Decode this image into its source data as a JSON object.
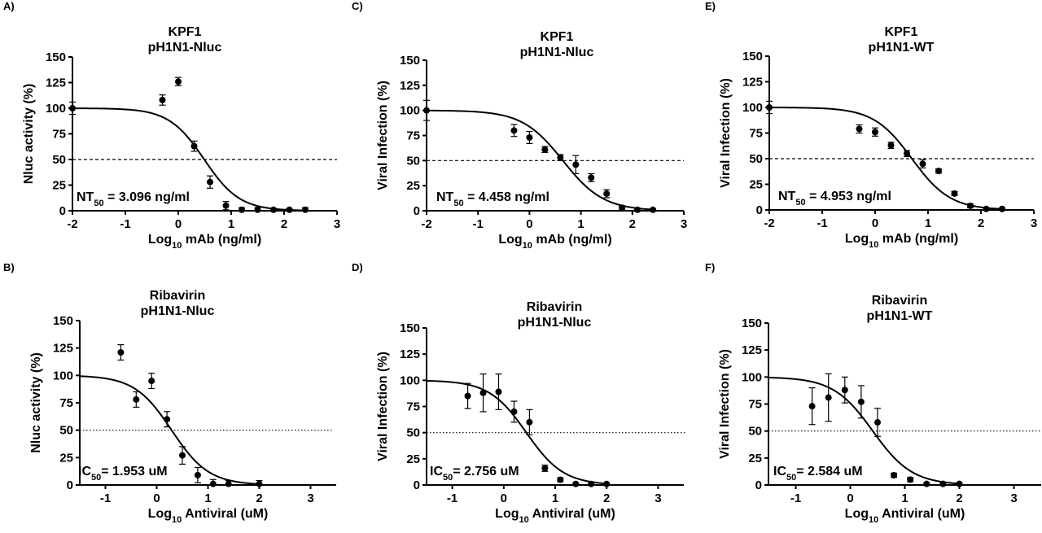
{
  "figure": {
    "background": "#ffffff",
    "ink": "#000000"
  },
  "chart_data": [
    {
      "panel_label": "A)",
      "type": "scatter",
      "title": "KPF1",
      "subtitle": "pH1N1-Nluc",
      "xlabel_prefix": "Log",
      "xlabel_sub": "10",
      "xlabel_suffix": " mAb (ng/ml)",
      "ylabel": "Nluc activity (%)",
      "xlim": [
        -2,
        3
      ],
      "ylim": [
        0,
        150
      ],
      "xticks": [
        -2,
        -1,
        0,
        1,
        2,
        3
      ],
      "yticks": [
        0,
        25,
        50,
        75,
        100,
        125,
        150
      ],
      "annotation_prefix": "NT",
      "annotation_sub": "50",
      "annotation_suffix": " = 3.096 ng/ml",
      "reference_line": {
        "y": 50,
        "style": "dashed"
      },
      "fit": {
        "top": 100,
        "bottom": 0,
        "logx50": 0.491,
        "hill": 1.3,
        "xrange": [
          -2,
          2.4
        ]
      },
      "points": [
        {
          "x": -2.0,
          "y": 100,
          "err": 6
        },
        {
          "x": -0.3,
          "y": 108,
          "err": 5
        },
        {
          "x": 0.0,
          "y": 126,
          "err": 4
        },
        {
          "x": 0.3,
          "y": 63,
          "err": 5
        },
        {
          "x": 0.6,
          "y": 28,
          "err": 6
        },
        {
          "x": 0.9,
          "y": 5,
          "err": 4
        },
        {
          "x": 1.2,
          "y": 1,
          "err": 2
        },
        {
          "x": 1.5,
          "y": 1,
          "err": 2
        },
        {
          "x": 1.8,
          "y": 1,
          "err": 1
        },
        {
          "x": 2.1,
          "y": 1,
          "err": 1
        },
        {
          "x": 2.4,
          "y": 1,
          "err": 2
        }
      ]
    },
    {
      "panel_label": "B)",
      "type": "scatter",
      "title": "Ribavirin",
      "subtitle": "pH1N1-Nluc",
      "xlabel_prefix": "Log",
      "xlabel_sub": "10",
      "xlabel_suffix": " Antiviral (uM)",
      "ylabel": "Nluc activity (%)",
      "xlim": [
        -1.5,
        3.5
      ],
      "ylim": [
        0,
        150
      ],
      "xticks": [
        -1,
        0,
        1,
        2,
        3
      ],
      "yticks": [
        0,
        25,
        50,
        75,
        100,
        125,
        150
      ],
      "annotation_prefix": "IC",
      "annotation_sub": "50",
      "annotation_suffix": "= 1.953 uM",
      "reference_line": {
        "y": 50,
        "style": "dotted"
      },
      "fit": {
        "top": 100,
        "bottom": 0,
        "logx50": 0.291,
        "hill": 1.2,
        "xrange": [
          -1.5,
          2.0
        ]
      },
      "points": [
        {
          "x": -0.7,
          "y": 121,
          "err": 7
        },
        {
          "x": -0.4,
          "y": 78,
          "err": 7
        },
        {
          "x": -0.1,
          "y": 95,
          "err": 7
        },
        {
          "x": 0.2,
          "y": 60,
          "err": 7
        },
        {
          "x": 0.5,
          "y": 27,
          "err": 8
        },
        {
          "x": 0.8,
          "y": 9,
          "err": 7
        },
        {
          "x": 1.1,
          "y": 1,
          "err": 4
        },
        {
          "x": 1.4,
          "y": 1,
          "err": 3
        },
        {
          "x": 2.0,
          "y": 1,
          "err": 3
        }
      ]
    },
    {
      "panel_label": "C)",
      "type": "scatter",
      "title": "KPF1",
      "subtitle": "pH1N1-Nluc",
      "xlabel_prefix": "Log",
      "xlabel_sub": "10",
      "xlabel_suffix": " mAb (ng/ml)",
      "ylabel": "Viral Infection (%)",
      "xlim": [
        -2,
        3
      ],
      "ylim": [
        0,
        150
      ],
      "xticks": [
        -2,
        -1,
        0,
        1,
        2,
        3
      ],
      "yticks": [
        0,
        25,
        50,
        75,
        100,
        125,
        150
      ],
      "annotation_prefix": "NT",
      "annotation_sub": "50",
      "annotation_suffix": " = 4.458 ng/ml",
      "reference_line": {
        "y": 50,
        "style": "dashed"
      },
      "fit": {
        "top": 100,
        "bottom": 0,
        "logx50": 0.649,
        "hill": 1.1,
        "xrange": [
          -2,
          2.4
        ]
      },
      "points": [
        {
          "x": -2.0,
          "y": 100,
          "err": 10
        },
        {
          "x": -0.3,
          "y": 80,
          "err": 6
        },
        {
          "x": 0.0,
          "y": 73,
          "err": 6
        },
        {
          "x": 0.3,
          "y": 61,
          "err": 3
        },
        {
          "x": 0.6,
          "y": 53,
          "err": 3
        },
        {
          "x": 0.9,
          "y": 46,
          "err": 9
        },
        {
          "x": 1.2,
          "y": 33,
          "err": 4
        },
        {
          "x": 1.5,
          "y": 17,
          "err": 4
        },
        {
          "x": 1.8,
          "y": 3,
          "err": 2
        },
        {
          "x": 2.1,
          "y": 1,
          "err": 1
        },
        {
          "x": 2.4,
          "y": 1,
          "err": 1
        }
      ]
    },
    {
      "panel_label": "D)",
      "type": "scatter",
      "title": "Ribavirin",
      "subtitle": "pH1N1-Nluc",
      "xlabel_prefix": "Log",
      "xlabel_sub": "10",
      "xlabel_suffix": " Antiviral (uM)",
      "ylabel": "Viral Infection (%)",
      "xlim": [
        -1.5,
        3.5
      ],
      "ylim": [
        0,
        150
      ],
      "xticks": [
        -1,
        0,
        1,
        2,
        3
      ],
      "yticks": [
        0,
        25,
        50,
        75,
        100,
        125,
        150
      ],
      "annotation_prefix": "IC",
      "annotation_sub": "50",
      "annotation_suffix": "= 2.756 uM",
      "reference_line": {
        "y": 50,
        "style": "dotted"
      },
      "fit": {
        "top": 100,
        "bottom": 0,
        "logx50": 0.44,
        "hill": 1.2,
        "xrange": [
          -1.5,
          2.0
        ]
      },
      "points": [
        {
          "x": -0.7,
          "y": 85,
          "err": 12
        },
        {
          "x": -0.4,
          "y": 88,
          "err": 18
        },
        {
          "x": -0.1,
          "y": 89,
          "err": 17
        },
        {
          "x": 0.2,
          "y": 70,
          "err": 10
        },
        {
          "x": 0.5,
          "y": 60,
          "err": 12
        },
        {
          "x": 0.8,
          "y": 16,
          "err": 3
        },
        {
          "x": 1.1,
          "y": 5,
          "err": 2
        },
        {
          "x": 1.4,
          "y": 1,
          "err": 1
        },
        {
          "x": 1.7,
          "y": 1,
          "err": 1
        },
        {
          "x": 2.0,
          "y": 1,
          "err": 1
        }
      ]
    },
    {
      "panel_label": "E)",
      "type": "scatter",
      "title": "KPF1",
      "subtitle": "pH1N1-WT",
      "xlabel_prefix": "Log",
      "xlabel_sub": "10",
      "xlabel_suffix": " mAb (ng/ml)",
      "ylabel": "Viral Infection (%)",
      "xlim": [
        -2,
        3
      ],
      "ylim": [
        0,
        150
      ],
      "xticks": [
        -2,
        -1,
        0,
        1,
        2,
        3
      ],
      "yticks": [
        0,
        25,
        50,
        75,
        100,
        125,
        150
      ],
      "annotation_prefix": "NT",
      "annotation_sub": "50",
      "annotation_suffix": " = 4.953 ng/ml",
      "reference_line": {
        "y": 50,
        "style": "dashed"
      },
      "fit": {
        "top": 100,
        "bottom": 0,
        "logx50": 0.695,
        "hill": 1.2,
        "xrange": [
          -2,
          2.4
        ]
      },
      "points": [
        {
          "x": -2.0,
          "y": 100,
          "err": 6
        },
        {
          "x": -0.3,
          "y": 79,
          "err": 4
        },
        {
          "x": 0.0,
          "y": 76,
          "err": 4
        },
        {
          "x": 0.3,
          "y": 63,
          "err": 3
        },
        {
          "x": 0.6,
          "y": 55,
          "err": 3
        },
        {
          "x": 0.9,
          "y": 45,
          "err": 4
        },
        {
          "x": 1.2,
          "y": 38,
          "err": 2
        },
        {
          "x": 1.5,
          "y": 16,
          "err": 2
        },
        {
          "x": 1.8,
          "y": 4,
          "err": 2
        },
        {
          "x": 2.1,
          "y": 1,
          "err": 1
        },
        {
          "x": 2.4,
          "y": 1,
          "err": 1
        }
      ]
    },
    {
      "panel_label": "F)",
      "type": "scatter",
      "title": "Ribavirin",
      "subtitle": "pH1N1-WT",
      "xlabel_prefix": "Log",
      "xlabel_sub": "10",
      "xlabel_suffix": " Antiviral (uM)",
      "ylabel": "Viral Infection (%)",
      "xlim": [
        -1.5,
        3.5
      ],
      "ylim": [
        0,
        150
      ],
      "xticks": [
        -1,
        0,
        1,
        2,
        3
      ],
      "yticks": [
        0,
        25,
        50,
        75,
        100,
        125,
        150
      ],
      "annotation_prefix": "IC",
      "annotation_sub": "50",
      "annotation_suffix": "= 2.584 uM",
      "reference_line": {
        "y": 50,
        "style": "dotted"
      },
      "fit": {
        "top": 100,
        "bottom": 0,
        "logx50": 0.412,
        "hill": 1.2,
        "xrange": [
          -1.5,
          2.0
        ]
      },
      "points": [
        {
          "x": -0.7,
          "y": 73,
          "err": 17
        },
        {
          "x": -0.4,
          "y": 81,
          "err": 22
        },
        {
          "x": -0.1,
          "y": 88,
          "err": 12
        },
        {
          "x": 0.2,
          "y": 77,
          "err": 15
        },
        {
          "x": 0.5,
          "y": 58,
          "err": 13
        },
        {
          "x": 0.8,
          "y": 9,
          "err": 2
        },
        {
          "x": 1.1,
          "y": 5,
          "err": 2
        },
        {
          "x": 1.4,
          "y": 1,
          "err": 1
        },
        {
          "x": 1.7,
          "y": 1,
          "err": 1
        },
        {
          "x": 2.0,
          "y": 1,
          "err": 1
        }
      ]
    }
  ]
}
